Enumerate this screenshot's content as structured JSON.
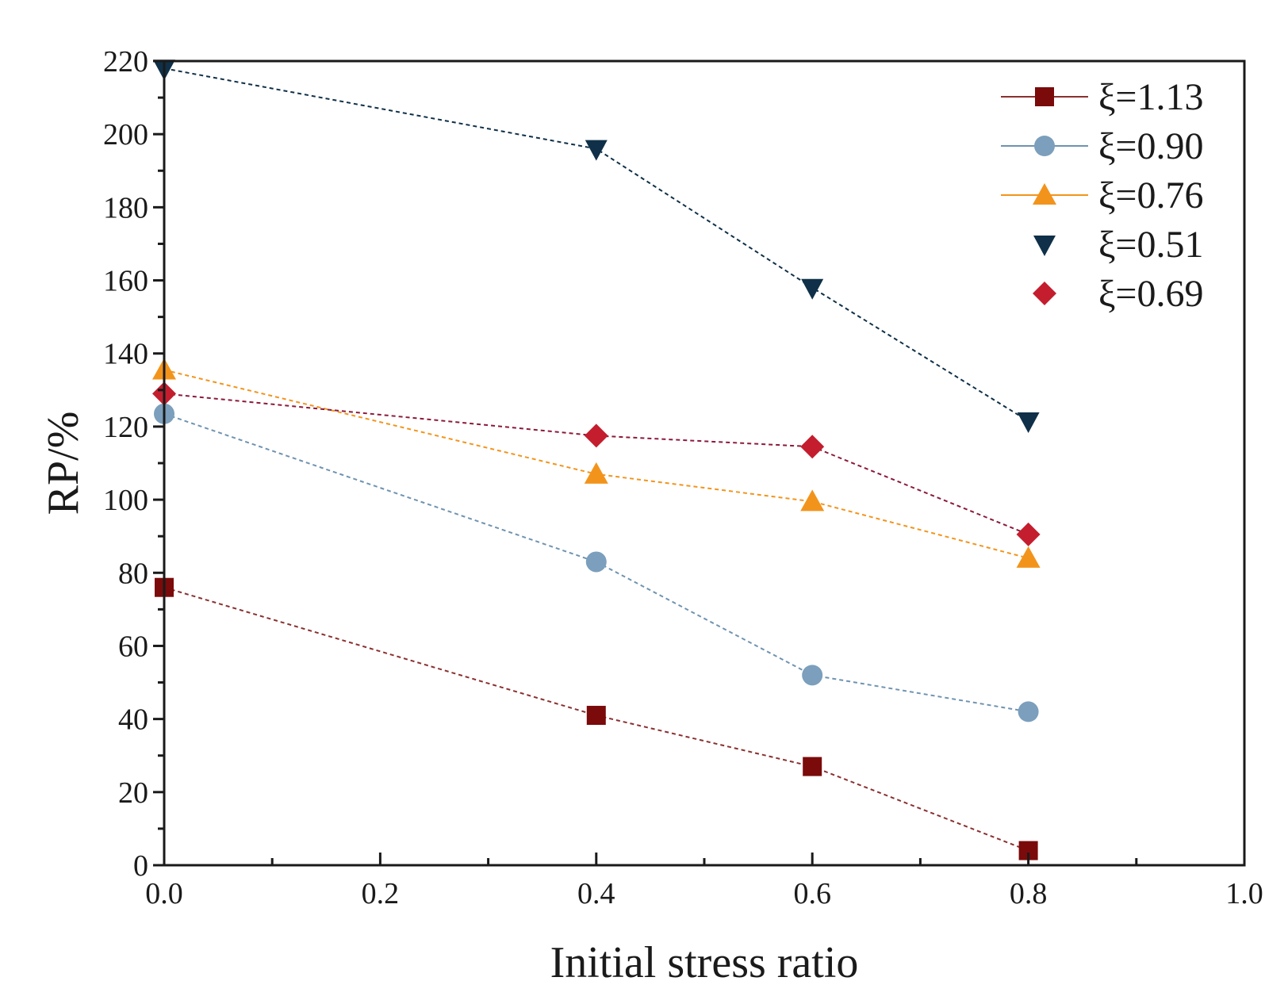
{
  "chart_data": {
    "type": "line",
    "title": "",
    "xlabel": "Initial stress ratio",
    "ylabel": "RP/%",
    "xlim": [
      0.0,
      1.0
    ],
    "ylim": [
      0,
      220
    ],
    "xticks": [
      0.0,
      0.2,
      0.4,
      0.6,
      0.8,
      1.0
    ],
    "xtick_labels": [
      "0.0",
      "0.2",
      "0.4",
      "0.6",
      "0.8",
      "1.0"
    ],
    "yticks": [
      0,
      20,
      40,
      60,
      80,
      100,
      120,
      140,
      160,
      180,
      200,
      220
    ],
    "ytick_labels": [
      "0",
      "20",
      "40",
      "60",
      "80",
      "100",
      "120",
      "140",
      "160",
      "180",
      "200",
      "220"
    ],
    "legend_position": "top-right",
    "x": [
      0.0,
      0.4,
      0.6,
      0.8
    ],
    "series": [
      {
        "name": "ξ=1.13",
        "marker": "square",
        "color": "#7b0a0a",
        "line_color": "#8a3030",
        "legend_line": true,
        "values": [
          76,
          41,
          27,
          4
        ]
      },
      {
        "name": "ξ=0.90",
        "marker": "circle",
        "color": "#7b9fbc",
        "line_color": "#6f93b0",
        "legend_line": true,
        "values": [
          123.5,
          83,
          52,
          42
        ]
      },
      {
        "name": "ξ=0.76",
        "marker": "triangle-up",
        "color": "#f2941c",
        "line_color": "#f2941c",
        "legend_line": true,
        "values": [
          135.5,
          107,
          99.5,
          84
        ]
      },
      {
        "name": "ξ=0.51",
        "marker": "triangle-down",
        "color": "#0f3048",
        "line_color": "#0f3048",
        "legend_line": false,
        "values": [
          218,
          196,
          158,
          121.5
        ]
      },
      {
        "name": "ξ=0.69",
        "marker": "diamond",
        "color": "#c41e2e",
        "line_color": "#8b1a3a",
        "legend_line": false,
        "values": [
          129,
          117.5,
          114.5,
          90.5
        ]
      }
    ]
  }
}
